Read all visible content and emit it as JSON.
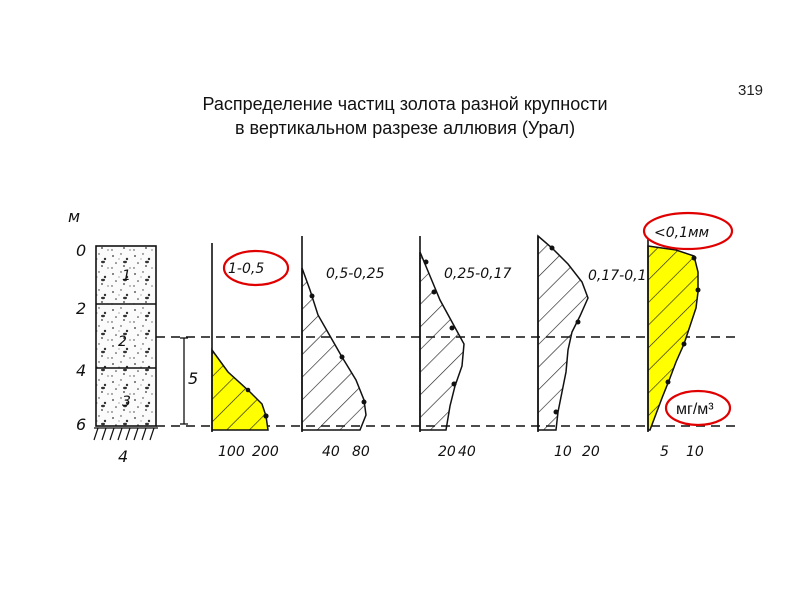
{
  "page_number": "319",
  "title": {
    "line1": "Распределение частиц золота разной крупности",
    "line2": "в вертикальном разрезе аллювия (Урал)"
  },
  "depth_axis": {
    "unit": "м",
    "ticks": [
      "0",
      "2",
      "4",
      "6"
    ]
  },
  "column": {
    "layers": [
      "1",
      "2",
      "3"
    ],
    "bedrock_label": "4",
    "thickness_label": "5"
  },
  "fractions": [
    {
      "label": "1-0,5",
      "ticks": [
        "100",
        "200"
      ],
      "highlighted": true
    },
    {
      "label": "0,5-0,25",
      "ticks": [
        "40",
        "80"
      ],
      "highlighted": false
    },
    {
      "label": "0,25-0,17",
      "ticks": [
        "20",
        "40"
      ],
      "highlighted": false
    },
    {
      "label": "0,17-0,1",
      "ticks": [
        "10",
        "20"
      ],
      "highlighted": false
    },
    {
      "label": "<0,1мм",
      "ticks": [
        "5",
        "10"
      ],
      "highlighted": true
    }
  ],
  "unit_label": "мг/м³",
  "colors": {
    "highlight_fill": "#ffff00",
    "annotation_circle": "#e00000"
  }
}
